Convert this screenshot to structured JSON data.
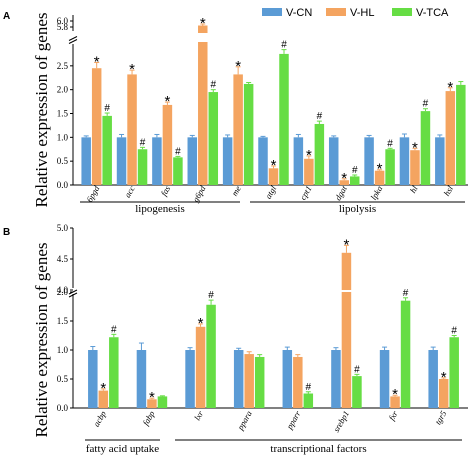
{
  "legend": {
    "placement": "top-right"
  },
  "chart_data": [
    {
      "type": "bar",
      "panel": "A",
      "ylabel": "Relative expression of genes",
      "xlabel": "",
      "ylim": [
        0,
        6.2
      ],
      "axis_break": [
        3.0,
        5.6
      ],
      "yticks_lower": [
        "0.0",
        "0.5",
        "1.0",
        "1.5",
        "2.0",
        "2.5"
      ],
      "yticks_upper": [
        "6.0",
        "5.8"
      ],
      "categories": [
        "6pgd",
        "acc",
        "fas",
        "g6pd",
        "me",
        "atgl",
        "cpt1",
        "dgat",
        "lpka",
        "hl",
        "hsl"
      ],
      "groups": [
        {
          "label": "lipogenesis",
          "from": 0,
          "to": 4
        },
        {
          "label": "lipolysis",
          "from": 5,
          "to": 10
        }
      ],
      "series": [
        {
          "name": "V-CN",
          "color": "#5b9bd5",
          "values": [
            1.0,
            1.0,
            1.0,
            1.0,
            1.0,
            1.0,
            1.0,
            1.0,
            1.0,
            1.0,
            1.0
          ],
          "errors": [
            0.03,
            0.06,
            0.06,
            0.04,
            0.05,
            0.02,
            0.06,
            0.03,
            0.04,
            0.07,
            0.05
          ]
        },
        {
          "name": "V-HL",
          "color": "#f4a460",
          "values": [
            2.45,
            2.32,
            1.68,
            5.85,
            2.32,
            0.35,
            0.55,
            0.1,
            0.3,
            0.73,
            1.97
          ],
          "errors": [
            0.12,
            0.09,
            0.06,
            0.05,
            0.16,
            0.05,
            0.06,
            0.03,
            0.02,
            0.04,
            0.07
          ],
          "marks": [
            "*",
            "*",
            "*",
            "*",
            "*",
            "*",
            "*",
            "*",
            "*",
            "*",
            "*"
          ]
        },
        {
          "name": "V-TCA",
          "color": "#66dd44",
          "values": [
            1.45,
            0.75,
            0.58,
            1.95,
            2.12,
            2.75,
            1.28,
            0.18,
            0.75,
            1.55,
            2.1
          ],
          "errors": [
            0.06,
            0.04,
            0.02,
            0.05,
            0.03,
            0.09,
            0.06,
            0.03,
            0.02,
            0.05,
            0.07
          ],
          "marks": [
            "#",
            "#",
            "#",
            "#",
            "",
            "#",
            "#",
            "#",
            "#",
            "#",
            ""
          ]
        }
      ]
    },
    {
      "type": "bar",
      "panel": "B",
      "ylabel": "Relative expression of genes",
      "xlabel": "",
      "ylim": [
        0,
        5.0
      ],
      "axis_break": [
        2.0,
        4.0
      ],
      "yticks_lower": [
        "0.0",
        "0.5",
        "1.0",
        "1.5",
        "2.0"
      ],
      "yticks_upper": [
        "5.0",
        "4.5",
        "4.0"
      ],
      "categories": [
        "acbp",
        "fabp",
        "lxr",
        "ppara",
        "pparr",
        "srebp1",
        "fxr",
        "tgr5"
      ],
      "groups": [
        {
          "label": "fatty acid uptake",
          "from": 0,
          "to": 1
        },
        {
          "label": "transcriptional factors",
          "from": 2,
          "to": 7
        }
      ],
      "series": [
        {
          "name": "V-CN",
          "color": "#5b9bd5",
          "values": [
            1.0,
            1.0,
            1.0,
            1.0,
            1.0,
            1.0,
            1.0,
            1.0
          ],
          "errors": [
            0.06,
            0.12,
            0.04,
            0.03,
            0.05,
            0.04,
            0.05,
            0.05
          ]
        },
        {
          "name": "V-HL",
          "color": "#f4a460",
          "values": [
            0.3,
            0.15,
            1.4,
            0.93,
            0.88,
            4.6,
            0.2,
            0.5
          ],
          "errors": [
            0.03,
            0.02,
            0.05,
            0.04,
            0.04,
            0.12,
            0.02,
            0.02
          ],
          "marks": [
            "*",
            "*",
            "*",
            "",
            "",
            "*",
            "*",
            "*"
          ]
        },
        {
          "name": "V-TCA",
          "color": "#66dd44",
          "values": [
            1.22,
            0.2,
            1.78,
            0.88,
            0.25,
            0.55,
            1.85,
            1.22
          ],
          "errors": [
            0.05,
            0.01,
            0.08,
            0.04,
            0.03,
            0.03,
            0.05,
            0.03
          ],
          "marks": [
            "#",
            "",
            "#",
            "",
            "#",
            "#",
            "#",
            "#"
          ]
        }
      ]
    }
  ]
}
